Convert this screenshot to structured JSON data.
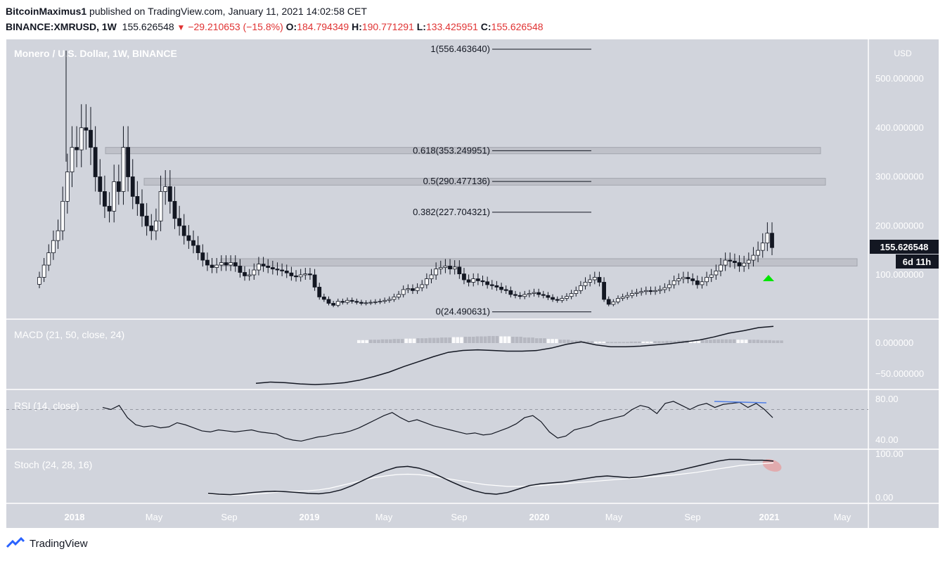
{
  "header": {
    "author": "BitcoinMaximus1",
    "published_text": "published on TradingView.com, January 11, 2021 14:02:58 CET",
    "symbol": "BINANCE:XMRUSD, 1W",
    "last_price": "155.626548",
    "change": "−29.210653 (−15.8%)",
    "open_label": "O:",
    "open": "184.794349",
    "high_label": "H:",
    "high": "190.771291",
    "low_label": "L:",
    "low": "133.425951",
    "close_label": "C:",
    "close": "155.626548"
  },
  "footer": {
    "brand": "TradingView"
  },
  "colors": {
    "panel_bg": "#d1d4dc",
    "axis_bg": "#d1d4dc",
    "candle_up": "#ffffff",
    "candle_down": "#131722",
    "zone": "#b8bbc3",
    "signal_up": "#00e600",
    "rsi_divergence": "#4f7ee6",
    "stoch_highlight": "#e89a9a"
  },
  "chart_data": [
    {
      "type": "candlestick",
      "title": "Monero / U.S. Dollar, 1W, BINANCE",
      "currency": "USD",
      "y_ticks": [
        "500.000000",
        "400.000000",
        "300.000000",
        "200.000000",
        "100.000000"
      ],
      "ylim": [
        0,
        560
      ],
      "x_ticks": [
        "2018",
        "May",
        "Sep",
        "2019",
        "May",
        "Sep",
        "2020",
        "May",
        "Sep",
        "2021",
        "May"
      ],
      "price_label": "155.626548",
      "countdown": "6d 11h",
      "fib_levels": [
        {
          "label": "1(556.463640)",
          "value": 556.46
        },
        {
          "label": "0.618(353.249951)",
          "value": 353.25
        },
        {
          "label": "0.5(290.477136)",
          "value": 290.48
        },
        {
          "label": "0.382(227.704321)",
          "value": 227.7
        },
        {
          "label": "0(24.490631)",
          "value": 24.49
        }
      ],
      "zones": [
        {
          "from": 347,
          "to": 360
        },
        {
          "from": 283,
          "to": 297
        },
        {
          "from": 118,
          "to": 133
        }
      ],
      "close_series": [
        95,
        120,
        145,
        170,
        190,
        250,
        310,
        360,
        355,
        400,
        395,
        360,
        300,
        270,
        240,
        230,
        290,
        270,
        360,
        300,
        260,
        245,
        220,
        200,
        190,
        210,
        270,
        280,
        250,
        215,
        200,
        180,
        170,
        160,
        145,
        130,
        120,
        115,
        120,
        125,
        120,
        125,
        118,
        105,
        98,
        100,
        110,
        122,
        118,
        115,
        112,
        110,
        108,
        104,
        98,
        96,
        100,
        102,
        100,
        75,
        55,
        50,
        42,
        38,
        46,
        44,
        48,
        46,
        44,
        42,
        43,
        44,
        45,
        46,
        48,
        50,
        55,
        60,
        70,
        72,
        68,
        74,
        80,
        92,
        100,
        112,
        115,
        118,
        112,
        116,
        102,
        90,
        85,
        92,
        88,
        86,
        80,
        78,
        75,
        70,
        68,
        60,
        58,
        56,
        60,
        62,
        64,
        60,
        58,
        54,
        50,
        48,
        52,
        56,
        62,
        68,
        78,
        85,
        90,
        95,
        85,
        50,
        40,
        45,
        52,
        55,
        58,
        62,
        64,
        66,
        68,
        66,
        68,
        70,
        74,
        80,
        88,
        92,
        95,
        92,
        88,
        80,
        86,
        95,
        100,
        108,
        120,
        130,
        128,
        125,
        118,
        124,
        130,
        140,
        150,
        165,
        185,
        155.63
      ],
      "fib_label_x_note": "labels drawn at right end of each fib line"
    },
    {
      "type": "line",
      "title": "MACD (21, 50, close, 24)",
      "y_ticks": [
        "0.000000",
        "−50.000000"
      ],
      "series": [
        {
          "name": "MACD",
          "values": [
            -65,
            -63,
            -64,
            -66,
            -67,
            -66,
            -64,
            -60,
            -54,
            -47,
            -38,
            -30,
            -22,
            -15,
            -12,
            -11,
            -12,
            -13,
            -13,
            -12,
            -8,
            -2,
            2,
            -3,
            -6,
            -6,
            -5,
            -3,
            -1,
            2,
            5,
            10,
            16,
            20,
            25,
            27
          ]
        },
        {
          "name": "Histogram",
          "values": [
            8,
            9,
            10,
            11,
            12,
            13,
            14,
            15,
            16,
            17,
            18,
            19,
            18,
            17,
            15,
            13,
            11,
            9,
            7,
            5,
            4,
            3,
            3,
            4,
            4,
            5,
            6,
            7,
            8,
            9,
            10,
            10,
            9,
            9,
            8,
            7
          ]
        }
      ]
    },
    {
      "type": "line",
      "title": "RSI (14, close)",
      "y_ticks": [
        "80.00",
        "40.00"
      ],
      "ylim": [
        30,
        90
      ],
      "series": [
        {
          "name": "RSI",
          "values": [
            72,
            70,
            74,
            62,
            55,
            53,
            54,
            52,
            53,
            57,
            55,
            52,
            49,
            48,
            50,
            49,
            48,
            49,
            50,
            48,
            47,
            46,
            42,
            40,
            39,
            41,
            43,
            44,
            46,
            47,
            49,
            52,
            56,
            60,
            64,
            67,
            62,
            58,
            60,
            57,
            54,
            52,
            50,
            48,
            46,
            47,
            45,
            46,
            49,
            52,
            56,
            62,
            64,
            58,
            48,
            42,
            44,
            50,
            52,
            54,
            58,
            60,
            62,
            64,
            70,
            74,
            72,
            66,
            76,
            78,
            74,
            70,
            74,
            76,
            72,
            75,
            76,
            77,
            72,
            76,
            70,
            62
          ]
        }
      ],
      "dashed_level": 70
    },
    {
      "type": "line",
      "title": "Stoch (24, 28, 16)",
      "y_ticks": [
        "100.00",
        "0.00"
      ],
      "ylim": [
        0,
        100
      ],
      "series": [
        {
          "name": "%K",
          "values": [
            10,
            8,
            7,
            9,
            12,
            14,
            15,
            14,
            12,
            10,
            9,
            12,
            18,
            28,
            40,
            52,
            62,
            70,
            72,
            68,
            60,
            48,
            36,
            25,
            16,
            10,
            8,
            12,
            20,
            28,
            32,
            34,
            36,
            40,
            44,
            48,
            50,
            48,
            46,
            48,
            52,
            56,
            60,
            66,
            72,
            78,
            84,
            88,
            88,
            86,
            86,
            84
          ]
        },
        {
          "name": "%D",
          "values": [
            8,
            7,
            6,
            6,
            8,
            10,
            12,
            14,
            15,
            16,
            18,
            22,
            28,
            34,
            40,
            46,
            50,
            53,
            54,
            53,
            50,
            46,
            42,
            38,
            34,
            30,
            28,
            26,
            26,
            27,
            28,
            30,
            32,
            34,
            36,
            38,
            40,
            42,
            44,
            46,
            48,
            50,
            52,
            55,
            58,
            62,
            66,
            70,
            74,
            76,
            78,
            80
          ]
        }
      ]
    }
  ]
}
